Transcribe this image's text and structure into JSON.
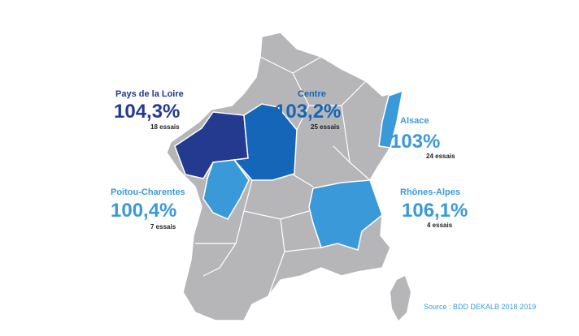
{
  "regions": [
    {
      "name": "Pays de la Loire",
      "value": "104,3%",
      "trials": "18 essais"
    },
    {
      "name": "Centre",
      "value": "103,2%",
      "trials": "25 essais"
    },
    {
      "name": "Alsace",
      "value": "103%",
      "trials": "24 essais"
    },
    {
      "name": "Poitou-Charentes",
      "value": "100,4%",
      "trials": "7 essais"
    },
    {
      "name": "Rhônes-Alpes",
      "value": "106,1%",
      "trials": "4 essais"
    }
  ],
  "source": "Source : BDD DEKALB 2018 2019"
}
